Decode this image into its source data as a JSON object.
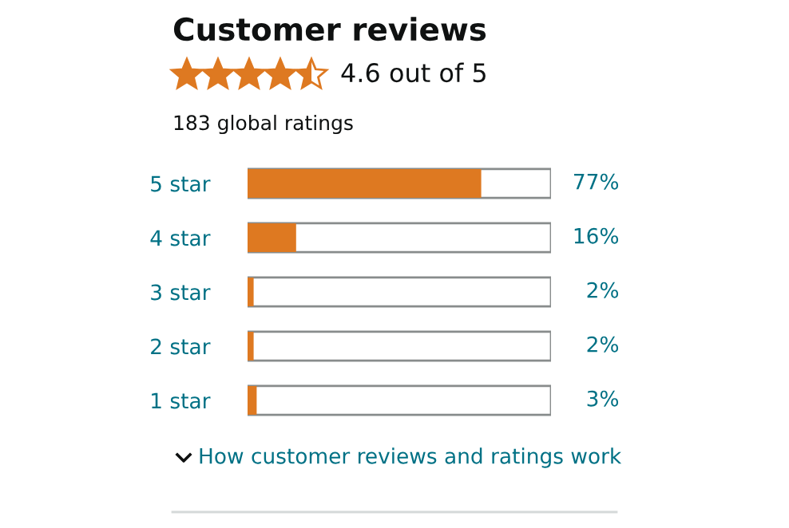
{
  "chart_data": {
    "type": "bar",
    "orientation": "horizontal",
    "title": "Customer reviews",
    "categories": [
      "5 star",
      "4 star",
      "3 star",
      "2 star",
      "1 star"
    ],
    "values": [
      77,
      16,
      2,
      2,
      3
    ],
    "color": "#de7921",
    "value_labels": [
      "77%",
      "16%",
      "2%",
      "2%",
      "3%"
    ],
    "xlim": [
      0,
      100
    ],
    "tick_labels": "y",
    "grid": false,
    "legend": false,
    "annotations": [
      "4.6 out of 5",
      "183 global ratings",
      "How customer reviews and ratings work"
    ]
  }
}
